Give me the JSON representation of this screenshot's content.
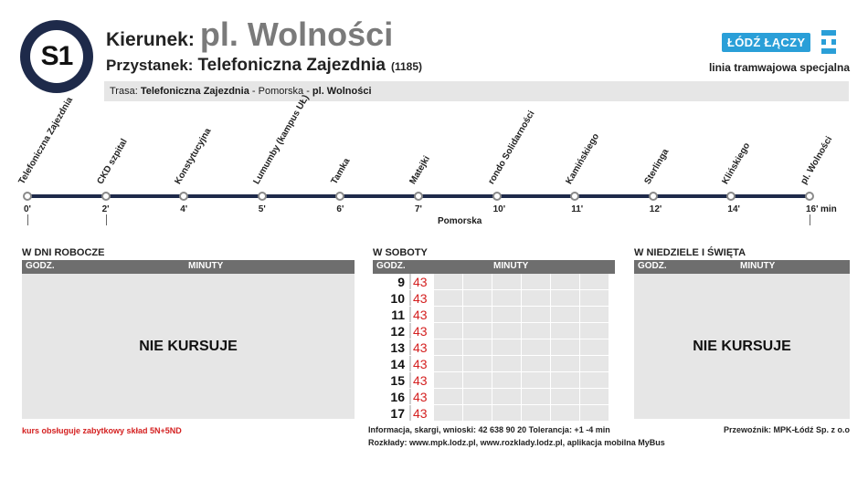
{
  "line": {
    "number": "S1"
  },
  "header": {
    "direction_label": "Kierunek:",
    "direction_value": "pl. Wolności",
    "stop_label": "Przystanek:",
    "stop_value": "Telefoniczna Zajezdnia",
    "stop_code": "(1185)"
  },
  "route": {
    "prefix": "Trasa:",
    "segments": [
      "Telefoniczna Zajezdnia",
      "Pomorska",
      "pl. Wolności"
    ],
    "separator": " - "
  },
  "brand": {
    "logo_text": "ŁÓDŹ ŁĄCZY",
    "logo_mark_icon": "lodz-emblem-icon",
    "line_type": "linia tramwajowa specjalna",
    "colors": {
      "accent": "#2a9fd8",
      "line": "#1e2a4a",
      "minutes": "#d42020"
    }
  },
  "stops": [
    {
      "name": "Telefoniczna Zajezdnia",
      "time": "0'"
    },
    {
      "name": "CKD szpital",
      "time": "2'"
    },
    {
      "name": "Konstytucyjna",
      "time": "4'"
    },
    {
      "name": "Lumumby (kampus UŁ)",
      "time": "5'"
    },
    {
      "name": "Tamka",
      "time": "6'"
    },
    {
      "name": "Matejki",
      "time": "7'"
    },
    {
      "name": "rondo Solidarności",
      "time": "10'"
    },
    {
      "name": "Kamińskiego",
      "time": "11'"
    },
    {
      "name": "Sterlinga",
      "time": "12'"
    },
    {
      "name": "Klińskiego",
      "time": "14'"
    },
    {
      "name": "pl. Wolności",
      "time": "16'"
    }
  ],
  "route_map": {
    "minutes_unit": "min",
    "pass_through_label": "Pomorska"
  },
  "timetable": {
    "hour_header": "GODZ.",
    "minutes_header": "MINUTY",
    "weekdays": {
      "title": "W DNI ROBOCZE",
      "status": "NIE KURSUJE"
    },
    "saturdays": {
      "title": "W SOBOTY",
      "rows": [
        {
          "hour": "9",
          "minutes": "43"
        },
        {
          "hour": "10",
          "minutes": "43"
        },
        {
          "hour": "11",
          "minutes": "43"
        },
        {
          "hour": "12",
          "minutes": "43"
        },
        {
          "hour": "13",
          "minutes": "43"
        },
        {
          "hour": "14",
          "minutes": "43"
        },
        {
          "hour": "15",
          "minutes": "43"
        },
        {
          "hour": "16",
          "minutes": "43"
        },
        {
          "hour": "17",
          "minutes": "43"
        }
      ]
    },
    "sundays": {
      "title": "W NIEDZIELE I ŚWIĘTA",
      "status": "NIE KURSUJE"
    }
  },
  "footer": {
    "note": "kurs obsługuje zabytkowy skład 5N+5ND",
    "info_line1": "Informacja, skargi, wnioski: 42 638 90 20 Tolerancja: +1 -4 min",
    "info_line2": "Rozkłady: www.mpk.lodz.pl, www.rozklady.lodz.pl, aplikacja mobilna MyBus",
    "carrier": "Przewoźnik: MPK-Łódź Sp. z o.o"
  }
}
